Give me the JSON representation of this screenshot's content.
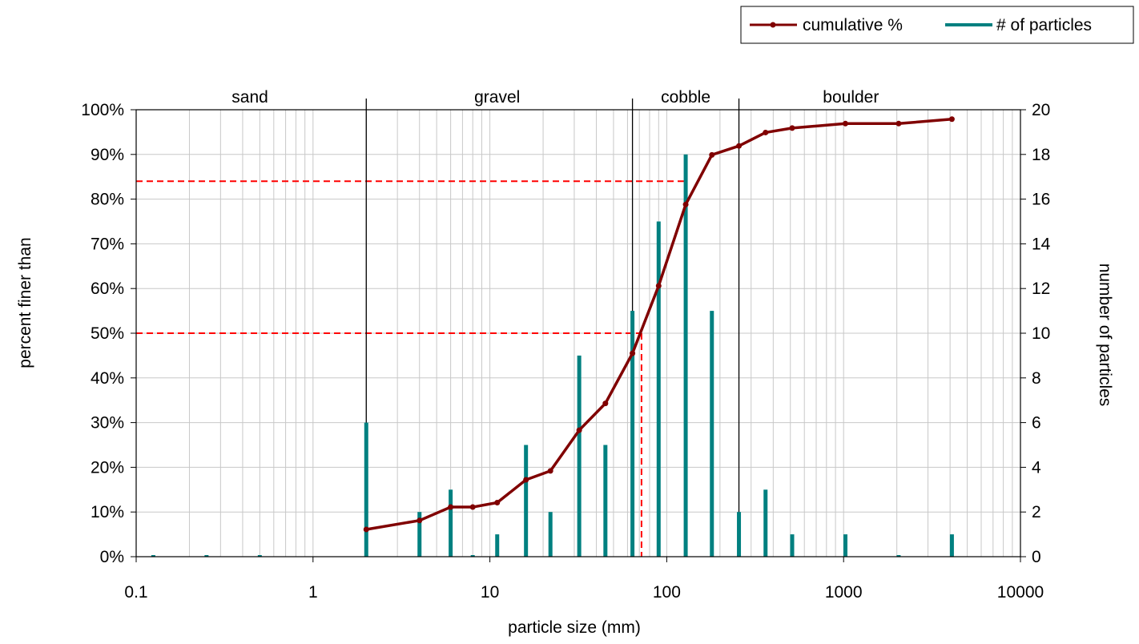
{
  "chart_data": {
    "type": "line",
    "xlabel": "particle size (mm)",
    "ylabel": "percent finer than",
    "y2label": "number of particles",
    "xscale": "log",
    "xlim": [
      0.1,
      10000
    ],
    "ylim": [
      0,
      100
    ],
    "y2lim": [
      0,
      20
    ],
    "grid": true,
    "legend_position": "top-right",
    "x_tick_labels": [
      "0.1",
      "1",
      "10",
      "100",
      "1000",
      "10000"
    ],
    "y_tick_labels": [
      "0%",
      "10%",
      "20%",
      "30%",
      "40%",
      "50%",
      "60%",
      "70%",
      "80%",
      "90%",
      "100%"
    ],
    "y2_tick_labels": [
      "0",
      "2",
      "4",
      "6",
      "8",
      "10",
      "12",
      "14",
      "16",
      "18",
      "20"
    ],
    "size_classes": [
      {
        "label": "sand",
        "x": 0.44
      },
      {
        "label": "gravel",
        "x": 11
      },
      {
        "label": "cobble",
        "x": 128
      },
      {
        "label": "boulder",
        "x": 1100
      }
    ],
    "class_boundaries": [
      2,
      64,
      256
    ],
    "reference_lines": [
      {
        "percent": 84,
        "size": 128
      },
      {
        "percent": 50,
        "size": 72
      }
    ],
    "series": [
      {
        "name": "cumulative %",
        "color": "#800000",
        "marker": "circle",
        "x": [
          2,
          4,
          6,
          8,
          11,
          16,
          22,
          32,
          45,
          64,
          90,
          128,
          180,
          256,
          362,
          512,
          1024,
          2048,
          4096
        ],
        "y": [
          6.1,
          8.1,
          11.1,
          11.1,
          12.1,
          17.2,
          19.2,
          28.3,
          34.3,
          45.5,
          60.6,
          78.8,
          89.9,
          91.9,
          94.9,
          95.9,
          96.9,
          96.9,
          97.9
        ]
      },
      {
        "name": "# of particles",
        "color": "#008080",
        "axis": "right",
        "x": [
          0.125,
          0.25,
          0.5,
          2,
          4,
          6,
          8,
          11,
          16,
          22,
          32,
          45,
          64,
          90,
          128,
          180,
          256,
          362,
          512,
          1024,
          2048,
          4096
        ],
        "y": [
          0,
          0,
          0,
          6,
          2,
          3,
          0,
          1,
          5,
          2,
          9,
          5,
          11,
          15,
          18,
          11,
          2,
          3,
          1,
          1,
          0,
          1
        ]
      }
    ]
  }
}
